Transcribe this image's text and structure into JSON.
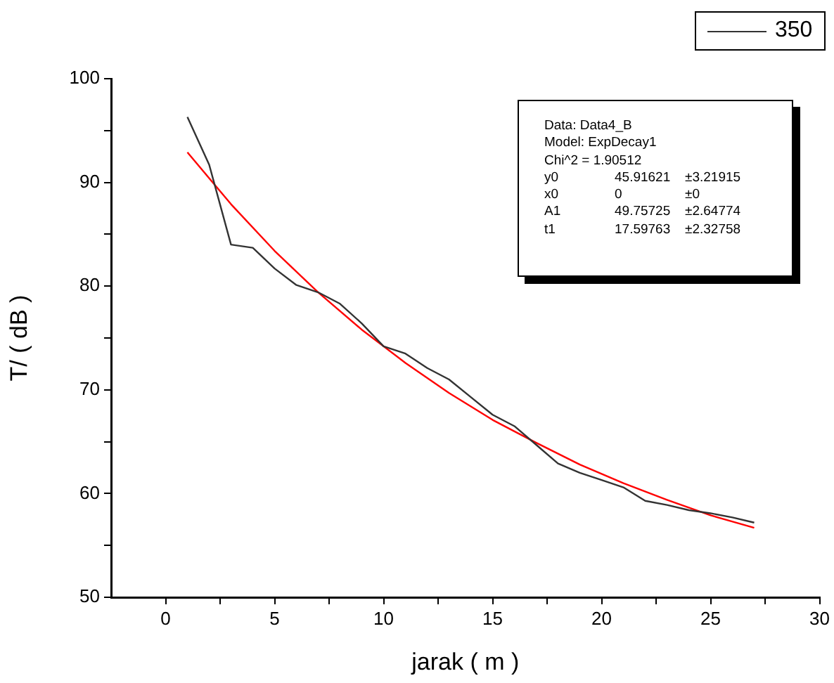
{
  "chart_data": {
    "type": "line",
    "xlabel": "jarak ( m )",
    "ylabel": "T/ ( dB )",
    "xlim": [
      -2.5,
      30
    ],
    "xticks": [
      {
        "value": 0,
        "label": "0"
      },
      {
        "value": 2.5,
        "label": null
      },
      {
        "value": 5,
        "label": "5"
      },
      {
        "value": 7.5,
        "label": null
      },
      {
        "value": 10,
        "label": "10"
      },
      {
        "value": 12.5,
        "label": null
      },
      {
        "value": 15,
        "label": "15"
      },
      {
        "value": 17.5,
        "label": null
      },
      {
        "value": 20,
        "label": "20"
      },
      {
        "value": 22.5,
        "label": null
      },
      {
        "value": 25,
        "label": "25"
      },
      {
        "value": 27.5,
        "label": null
      },
      {
        "value": 30,
        "label": "30"
      }
    ],
    "ylim": [
      50,
      100
    ],
    "yticks": [
      {
        "value": 50,
        "label": "50"
      },
      {
        "value": 55,
        "label": null
      },
      {
        "value": 60,
        "label": "60"
      },
      {
        "value": 65,
        "label": null
      },
      {
        "value": 70,
        "label": "70"
      },
      {
        "value": 75,
        "label": null
      },
      {
        "value": 80,
        "label": "80"
      },
      {
        "value": 85,
        "label": null
      },
      {
        "value": 90,
        "label": "90"
      },
      {
        "value": 95,
        "label": null
      },
      {
        "value": 100,
        "label": "100"
      }
    ],
    "grid": false,
    "legend": "top right",
    "marker": "none",
    "line_style": "solid",
    "series": [
      {
        "name": "350",
        "color": "#333333",
        "x": [
          1,
          2,
          3,
          4,
          5,
          6,
          7,
          8,
          9,
          10,
          11,
          12,
          13,
          14,
          15,
          16,
          17,
          18,
          19,
          20,
          21,
          22,
          23,
          24,
          25,
          26,
          27
        ],
        "values": [
          96.3,
          91.7,
          84.0,
          83.7,
          81.7,
          80.1,
          79.4,
          78.3,
          76.4,
          74.2,
          73.5,
          72.1,
          71.0,
          69.3,
          67.6,
          66.5,
          64.7,
          62.9,
          62.0,
          61.3,
          60.6,
          59.3,
          58.9,
          58.4,
          58.1,
          57.7,
          57.2
        ]
      },
      {
        "type": "line",
        "color": "#ff0000",
        "x": [
          1,
          3,
          5,
          7,
          9,
          11,
          13,
          15,
          17,
          19,
          21,
          23,
          25,
          27
        ],
        "values": [
          92.9,
          87.9,
          83.4,
          79.4,
          75.8,
          72.6,
          69.7,
          67.1,
          64.9,
          62.8,
          61.0,
          59.4,
          57.9,
          56.7
        ]
      }
    ],
    "annotations": [
      "Data: Data4_B",
      "Model: ExpDecay1",
      "Chi^2 = 1.90512",
      "y0\t45.91621\t±3.21915",
      "x0\t0\t±0",
      "A1\t49.75725\t±2.64774",
      "t1\t17.59763\t±2.32758"
    ]
  }
}
